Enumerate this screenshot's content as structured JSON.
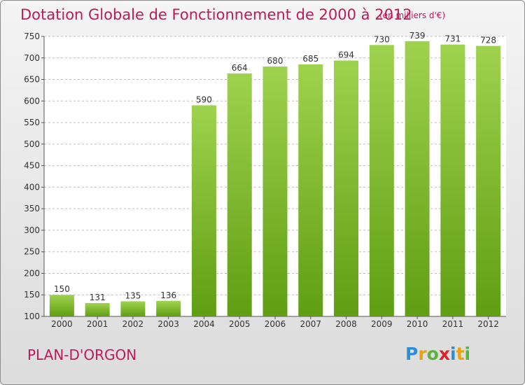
{
  "header": {
    "title": "Dotation Globale de Fonctionnement de 2000 à 2012",
    "subtitle": "(en milliers d'€)"
  },
  "footer": {
    "commune": "PLAN-D'ORGON",
    "logo_letters": [
      "P",
      "r",
      "o",
      "x",
      "i",
      "t",
      "i"
    ],
    "logo_colors": [
      "#2b8fd6",
      "#e8a212",
      "#58b43a",
      "#d9262e",
      "#2b8fd6",
      "#e8a212",
      "#58b43a"
    ]
  },
  "colors": {
    "title": "#c0185a",
    "bar_top": "#9fd24f",
    "bar_bottom": "#5f9e12"
  },
  "chart_data": {
    "type": "bar",
    "categories": [
      "2000",
      "2001",
      "2002",
      "2003",
      "2004",
      "2005",
      "2006",
      "2007",
      "2008",
      "2009",
      "2010",
      "2011",
      "2012"
    ],
    "values": [
      150,
      131,
      135,
      136,
      590,
      664,
      680,
      685,
      694,
      730,
      739,
      731,
      728
    ],
    "ylim": [
      100,
      750
    ],
    "yticks": [
      100,
      150,
      200,
      250,
      300,
      350,
      400,
      450,
      500,
      550,
      600,
      650,
      700,
      750
    ],
    "grid": true,
    "xlabel": "",
    "ylabel": ""
  }
}
